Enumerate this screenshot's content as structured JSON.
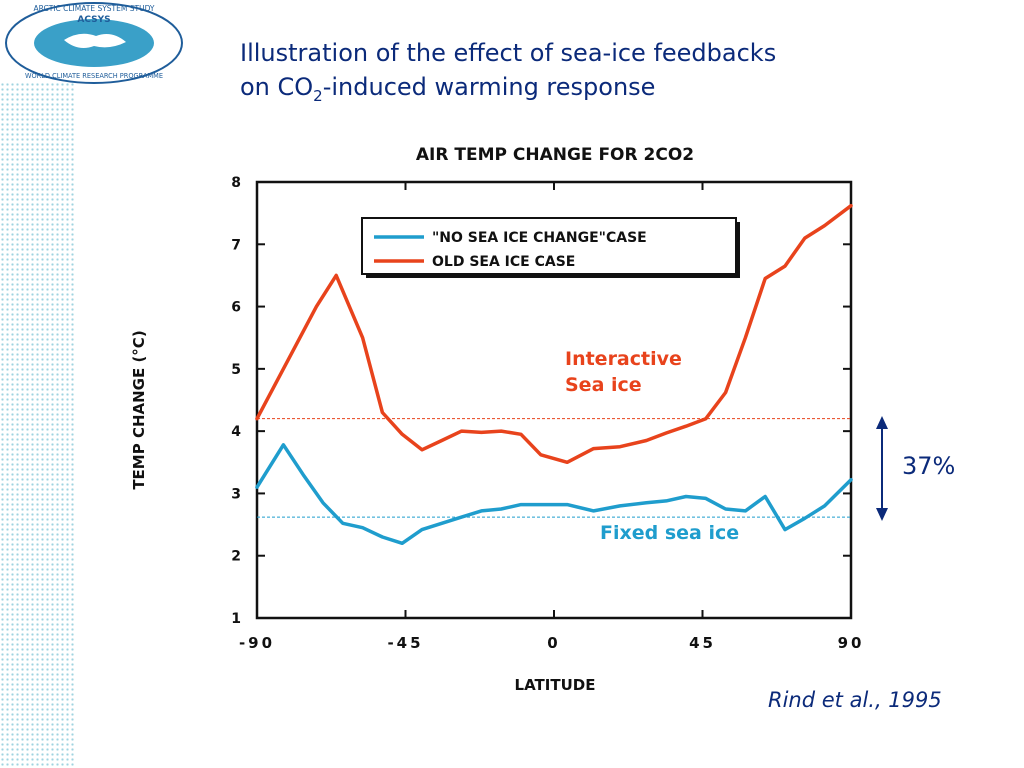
{
  "logo": {
    "arc_top": "ARCTIC CLIMATE SYSTEM STUDY",
    "name": "ACSYS",
    "arc_bottom": "WORLD CLIMATE RESEARCH PROGRAMME"
  },
  "title_line1": "Illustration of the effect of sea-ice feedbacks",
  "title_line2_pre": "on CO",
  "title_line2_sub": "2",
  "title_line2_post": "-induced warming response",
  "annotations": {
    "interactive_line1": "Interactive",
    "interactive_line2": "Sea ice",
    "fixed": "Fixed sea ice",
    "percent": "37%"
  },
  "citation": "Rind et al., 1995",
  "colors": {
    "old_sea_ice": "#e8431c",
    "no_sea_ice_change": "#1f9dcd",
    "text_navy": "#0b2a7a",
    "chart_text": "#111111"
  },
  "chart_data": {
    "type": "line",
    "title": "AIR TEMP CHANGE FOR 2CO2",
    "xlabel": "LATITUDE",
    "ylabel": "TEMP CHANGE (°C)",
    "xlim": [
      -90,
      90
    ],
    "ylim": [
      1,
      8
    ],
    "xticks": [
      -90,
      -45,
      0,
      45,
      90
    ],
    "xtick_labels": [
      "-90",
      "-45",
      "0",
      "45",
      "90"
    ],
    "yticks": [
      1,
      2,
      3,
      4,
      5,
      6,
      7,
      8
    ],
    "legend_position": "top-center",
    "series": [
      {
        "name": "\"NO SEA ICE CHANGE\"CASE",
        "color": "#1f9dcd",
        "x": [
          -90,
          -82,
          -76,
          -70,
          -64,
          -58,
          -52,
          -46,
          -40,
          -34,
          -28,
          -22,
          -16,
          -10,
          -4,
          4,
          12,
          20,
          28,
          34,
          40,
          46,
          52,
          58,
          64,
          70,
          76,
          82,
          90
        ],
        "y": [
          3.1,
          3.78,
          3.3,
          2.85,
          2.52,
          2.45,
          2.3,
          2.2,
          2.42,
          2.52,
          2.62,
          2.72,
          2.75,
          2.82,
          2.82,
          2.82,
          2.72,
          2.8,
          2.85,
          2.88,
          2.95,
          2.92,
          2.75,
          2.72,
          2.95,
          2.42,
          2.6,
          2.8,
          3.22
        ]
      },
      {
        "name": "OLD SEA ICE CASE",
        "color": "#e8431c",
        "x": [
          -90,
          -84,
          -78,
          -72,
          -66,
          -58,
          -52,
          -46,
          -40,
          -34,
          -28,
          -22,
          -16,
          -10,
          -4,
          4,
          12,
          20,
          28,
          34,
          40,
          46,
          52,
          58,
          64,
          70,
          76,
          82,
          90
        ],
        "y": [
          4.2,
          4.8,
          5.4,
          6.0,
          6.5,
          5.5,
          4.3,
          3.95,
          3.7,
          3.85,
          4.0,
          3.98,
          4.0,
          3.95,
          3.62,
          3.5,
          3.72,
          3.75,
          3.85,
          3.97,
          4.08,
          4.2,
          4.62,
          5.5,
          6.45,
          6.65,
          7.1,
          7.3,
          7.62
        ]
      }
    ],
    "reference_lines": [
      {
        "label": "Interactive Sea ice mean",
        "color": "#e8431c",
        "y": 4.2
      },
      {
        "label": "Fixed sea ice mean",
        "color": "#1f9dcd",
        "y": 2.62
      }
    ]
  }
}
